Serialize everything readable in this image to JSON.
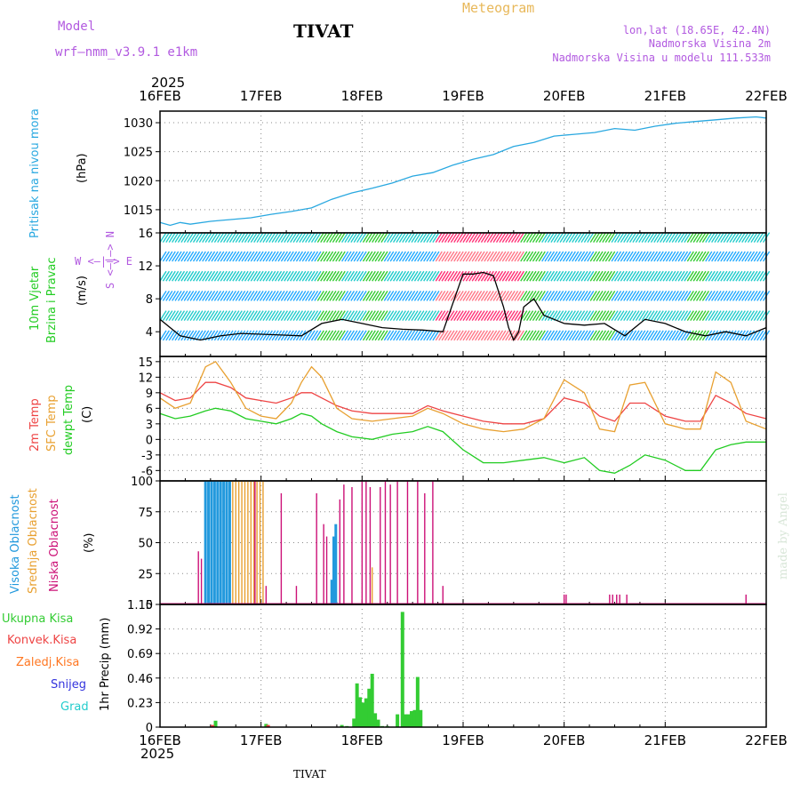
{
  "header": {
    "model_label": "Model",
    "model_name": "wrf—nmm_v3.9.1 e1km",
    "station": "TIVAT",
    "meteogram": "Meteogram",
    "lonlat": "lon,lat (18.65E, 42.4N)",
    "elevation": "Nadmorska Visina 2m",
    "model_elevation": "Nadmorska Visina u modelu 111.533m"
  },
  "time_axis": {
    "year_top": "2025",
    "year_bottom": "2025",
    "labels": [
      "16FEB",
      "17FEB",
      "18FEB",
      "19FEB",
      "20FEB",
      "21FEB",
      "22FEB"
    ]
  },
  "footer": {
    "station": "TIVAT",
    "signature": "made by Angel"
  },
  "colors": {
    "pressure": "#29a8e0",
    "wind_label": "#22cc22",
    "temp2m": "#ee4444",
    "sfc": "#e8a030",
    "dew": "#22cc22",
    "high": "#2299dd",
    "mid": "#e8a030",
    "low": "#cc1177",
    "total": "#33cc33",
    "conv": "#ee4444",
    "frz": "#ff7722",
    "snow": "#3333dd",
    "hail": "#22cccc",
    "wind_speed": "#000000"
  },
  "chart_data": [
    {
      "type": "line",
      "panel": "pressure",
      "ylabel_left": "Pritisak na nivou mora",
      "ylabel_unit": "(hPa)",
      "ylim": [
        1011,
        1032
      ],
      "yticks": [
        "1015",
        "1020",
        "1025",
        "1030"
      ],
      "x_days": [
        0,
        0.1,
        0.2,
        0.3,
        0.5,
        0.7,
        0.9,
        1.1,
        1.3,
        1.5,
        1.7,
        1.9,
        2.1,
        2.3,
        2.5,
        2.7,
        2.9,
        3.1,
        3.3,
        3.5,
        3.7,
        3.9,
        4.1,
        4.3,
        4.5,
        4.7,
        4.9,
        5.1,
        5.3,
        5.5,
        5.7,
        5.9,
        6.0
      ],
      "series": [
        {
          "values": [
            1012.8,
            1012.3,
            1012.8,
            1012.5,
            1013.0,
            1013.3,
            1013.6,
            1014.2,
            1014.7,
            1015.3,
            1016.8,
            1017.9,
            1018.7,
            1019.6,
            1020.8,
            1021.4,
            1022.7,
            1023.7,
            1024.5,
            1025.9,
            1026.6,
            1027.7,
            1028.0,
            1028.3,
            1029.0,
            1028.7,
            1029.4,
            1029.9,
            1030.2,
            1030.5,
            1030.8,
            1031.0,
            1030.8
          ]
        }
      ]
    },
    {
      "type": "line",
      "panel": "wind",
      "ylabel_left": "10m Vjetar",
      "ylabel_left2": "Brzina i Pravac",
      "ylabel_unit": "(m/s)",
      "compass": "W <—|—> E",
      "compass_v": "S <—|—> N",
      "ylim": [
        1,
        16
      ],
      "yticks": [
        "4",
        "8",
        "12",
        "16"
      ],
      "x_days": [
        0,
        0.2,
        0.4,
        0.6,
        0.8,
        1.0,
        1.2,
        1.4,
        1.6,
        1.8,
        2.0,
        2.2,
        2.4,
        2.6,
        2.8,
        3.0,
        3.1,
        3.2,
        3.3,
        3.4,
        3.45,
        3.5,
        3.55,
        3.6,
        3.7,
        3.8,
        4.0,
        4.2,
        4.4,
        4.6,
        4.8,
        5.0,
        5.2,
        5.4,
        5.6,
        5.8,
        6.0
      ],
      "series": [
        {
          "name": "",
          "values": [
            5.5,
            3.5,
            3.0,
            3.5,
            3.8,
            3.7,
            3.6,
            3.5,
            5.0,
            5.5,
            5.0,
            4.5,
            4.3,
            4.2,
            4.0,
            11.0,
            11.0,
            11.2,
            10.8,
            7.0,
            4.5,
            3.0,
            4.0,
            7.0,
            8.0,
            6.0,
            5.0,
            4.8,
            5.0,
            3.5,
            5.5,
            5.0,
            4.0,
            3.5,
            4.0,
            3.5,
            4.5
          ]
        }
      ]
    },
    {
      "type": "line",
      "panel": "temperature",
      "ylabel_left": "2m Temp",
      "ylabel_left2": "SFC Temp",
      "ylabel_left3": "dewpt Temp",
      "ylabel_unit": "(C)",
      "ylim": [
        -8,
        16
      ],
      "yticks": [
        "-6",
        "-3",
        "0",
        "3",
        "6",
        "9",
        "12",
        "15"
      ],
      "x_days": [
        0,
        0.15,
        0.3,
        0.45,
        0.55,
        0.7,
        0.85,
        1.0,
        1.15,
        1.3,
        1.4,
        1.5,
        1.6,
        1.75,
        1.9,
        2.1,
        2.3,
        2.5,
        2.65,
        2.8,
        3.0,
        3.2,
        3.4,
        3.6,
        3.8,
        4.0,
        4.2,
        4.35,
        4.5,
        4.65,
        4.8,
        5.0,
        5.2,
        5.35,
        5.5,
        5.65,
        5.8,
        6.0
      ],
      "series": [
        {
          "name": "2m Temp",
          "values": [
            9,
            7.5,
            8,
            11,
            11,
            10,
            8,
            7.5,
            7,
            8,
            9,
            9,
            8,
            6.5,
            5.5,
            5,
            5,
            5,
            6.5,
            5.5,
            4.5,
            3.5,
            3,
            3,
            4,
            8,
            7,
            4.5,
            3.5,
            7,
            7,
            4.5,
            3.5,
            3.5,
            8.5,
            7,
            5,
            4
          ]
        },
        {
          "name": "SFC Temp",
          "values": [
            8,
            6,
            7,
            14,
            15,
            11,
            6,
            4.5,
            4,
            7,
            11,
            14,
            12,
            6,
            4,
            3.5,
            4,
            4.5,
            6,
            5,
            3,
            2,
            1.5,
            2,
            4,
            11.5,
            9,
            2,
            1.5,
            10.5,
            11,
            3,
            2,
            2,
            13,
            11,
            3.5,
            2
          ]
        },
        {
          "name": "dewpt Temp",
          "values": [
            5,
            4,
            4.5,
            5.5,
            6,
            5.5,
            4,
            3.5,
            3,
            4,
            5,
            4.5,
            3,
            1.5,
            0.5,
            0,
            1,
            1.5,
            2.5,
            1.5,
            -2,
            -4.5,
            -4.5,
            -4,
            -3.5,
            -4.5,
            -3.5,
            -6,
            -6.5,
            -5,
            -3,
            -4,
            -6,
            -6,
            -2,
            -1,
            -0.5,
            -0.5
          ]
        }
      ]
    },
    {
      "type": "bar",
      "panel": "cloud",
      "ylabel_left": "Visoka Oblacnost",
      "ylabel_left2": "Srednja Oblacnost",
      "ylabel_left3": "Niska Oblacnost",
      "ylabel_unit": "(%)",
      "ylim": [
        0,
        100
      ],
      "yticks": [
        "0",
        "25",
        "50",
        "75",
        "100"
      ],
      "series": [
        {
          "name": "Visoka Oblacnost",
          "x_days": [
            0.45,
            0.48,
            0.51,
            0.54,
            0.57,
            0.6,
            0.63,
            0.66,
            0.69,
            1.7,
            1.72,
            1.74
          ],
          "values": [
            100,
            100,
            100,
            100,
            100,
            100,
            100,
            100,
            100,
            20,
            55,
            65
          ]
        },
        {
          "name": "Srednja Oblacnost",
          "x_days": [
            0.72,
            0.75,
            0.78,
            0.81,
            0.84,
            0.87,
            0.9,
            0.93,
            0.96,
            0.99,
            1.02,
            2.1
          ],
          "values": [
            100,
            100,
            100,
            100,
            100,
            100,
            100,
            100,
            100,
            100,
            100,
            30
          ]
        },
        {
          "name": "Niska Oblacnost",
          "x_days": [
            0.38,
            0.41,
            0.94,
            1.05,
            1.2,
            1.35,
            1.55,
            1.62,
            1.65,
            1.78,
            1.82,
            1.9,
            2.0,
            2.04,
            2.08,
            2.18,
            2.23,
            2.28,
            2.35,
            2.45,
            2.55,
            2.62,
            2.7,
            2.8,
            4.0,
            4.02,
            4.45,
            4.48,
            4.52,
            4.55,
            4.62,
            5.8
          ],
          "values": [
            43,
            37,
            100,
            15,
            90,
            15,
            90,
            65,
            55,
            85,
            97,
            95,
            100,
            100,
            95,
            95,
            100,
            97,
            100,
            100,
            100,
            90,
            100,
            15,
            8,
            8,
            8,
            8,
            8,
            8,
            8,
            8
          ]
        }
      ]
    },
    {
      "type": "bar",
      "panel": "precip",
      "ylabel_left": "1hr Precip (mm)",
      "legend": [
        "Ukupna Kisa",
        "Konvek.Kisa",
        "Zaledj.Kisa",
        "Snijeg",
        "Grad"
      ],
      "ylim": [
        0,
        1.15
      ],
      "yticks": [
        "0",
        "0.23",
        "0.46",
        "0.69",
        "0.92",
        "1.15"
      ],
      "series": [
        {
          "name": "Ukupna Kisa",
          "x_days": [
            0.55,
            1.05,
            1.8,
            1.85,
            1.92,
            1.95,
            1.98,
            2.01,
            2.04,
            2.07,
            2.1,
            2.13,
            2.16,
            2.2,
            2.25,
            2.35,
            2.4,
            2.43,
            2.46,
            2.49,
            2.52,
            2.55,
            2.58
          ],
          "values": [
            0.06,
            0.03,
            0.02,
            0.01,
            0.08,
            0.41,
            0.28,
            0.23,
            0.27,
            0.36,
            0.5,
            0.13,
            0.07,
            0.01,
            0.01,
            0.12,
            1.08,
            0.12,
            0.12,
            0.15,
            0.16,
            0.47,
            0.16
          ]
        },
        {
          "name": "Konvek.Kisa",
          "x_days": [
            0.52,
            1.07
          ],
          "values": [
            0.02,
            0.02
          ]
        }
      ]
    }
  ]
}
